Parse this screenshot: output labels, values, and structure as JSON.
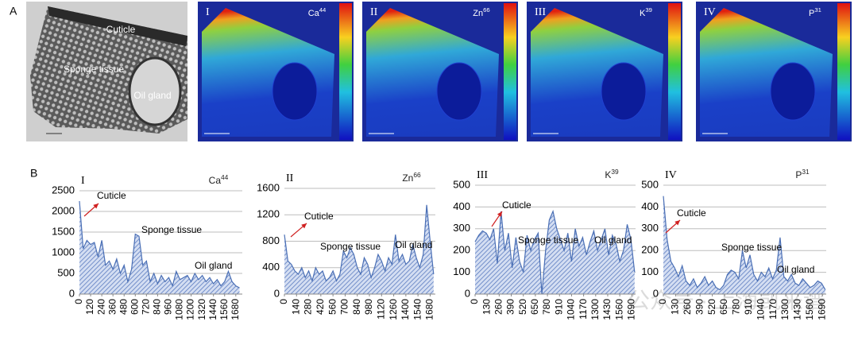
{
  "panel_labels": [
    "A",
    "B"
  ],
  "micrograph": {
    "labels": [
      "Cuticle",
      "Sponge tissue",
      "Oil gland"
    ]
  },
  "maps": [
    {
      "numeral": "I",
      "element": "Ca",
      "isotope": "44"
    },
    {
      "numeral": "II",
      "element": "Zn",
      "isotope": "66"
    },
    {
      "numeral": "III",
      "element": "K",
      "isotope": "39"
    },
    {
      "numeral": "IV",
      "element": "P",
      "isotope": "31"
    }
  ],
  "watermark": "公众号 · 上海凯来谱",
  "chart_data": [
    {
      "type": "area",
      "title": "I",
      "element": "Ca",
      "isotope": "44",
      "color": "#4a6fb5",
      "grid": true,
      "annotations": [
        "Cuticle",
        "Sponge tissue",
        "Oil gland"
      ],
      "x": [
        0,
        40,
        80,
        120,
        160,
        200,
        240,
        280,
        320,
        360,
        400,
        440,
        480,
        520,
        560,
        600,
        640,
        680,
        720,
        760,
        800,
        840,
        880,
        920,
        960,
        1000,
        1040,
        1080,
        1120,
        1160,
        1200,
        1240,
        1280,
        1320,
        1360,
        1400,
        1440,
        1480,
        1520,
        1560,
        1600,
        1640,
        1680,
        1720
      ],
      "values": [
        2250,
        1100,
        1300,
        1200,
        1250,
        900,
        1300,
        700,
        800,
        600,
        850,
        500,
        700,
        300,
        600,
        1450,
        1400,
        700,
        800,
        300,
        500,
        250,
        450,
        300,
        400,
        200,
        550,
        350,
        400,
        450,
        300,
        500,
        350,
        450,
        300,
        400,
        250,
        350,
        200,
        300,
        550,
        300,
        200,
        150
      ],
      "xlim": [
        0,
        1750
      ],
      "xticks": [
        0,
        120,
        240,
        360,
        480,
        600,
        720,
        840,
        960,
        1080,
        1200,
        1320,
        1440,
        1560,
        1680
      ],
      "ylim": [
        0,
        2500
      ],
      "yticks": [
        0,
        500,
        1000,
        1500,
        2000,
        2500
      ]
    },
    {
      "type": "area",
      "title": "II",
      "element": "Zn",
      "isotope": "66",
      "color": "#4a6fb5",
      "grid": true,
      "annotations": [
        "Cuticle",
        "Sponge tissue",
        "Oil gland"
      ],
      "x": [
        0,
        40,
        80,
        120,
        160,
        200,
        240,
        280,
        320,
        360,
        400,
        440,
        480,
        520,
        560,
        600,
        640,
        680,
        720,
        760,
        800,
        840,
        880,
        920,
        960,
        1000,
        1040,
        1080,
        1120,
        1160,
        1200,
        1240,
        1280,
        1320,
        1360,
        1400,
        1440,
        1480,
        1520,
        1560,
        1600,
        1640,
        1680,
        1720
      ],
      "values": [
        900,
        500,
        450,
        350,
        300,
        400,
        250,
        350,
        200,
        400,
        300,
        350,
        200,
        250,
        350,
        200,
        300,
        650,
        550,
        700,
        600,
        400,
        300,
        550,
        450,
        250,
        400,
        600,
        500,
        350,
        550,
        450,
        900,
        500,
        600,
        450,
        500,
        750,
        550,
        400,
        600,
        1350,
        800,
        300
      ],
      "xlim": [
        0,
        1740
      ],
      "xticks": [
        0,
        140,
        280,
        420,
        560,
        700,
        840,
        980,
        1120,
        1260,
        1400,
        1540,
        1680
      ],
      "ylim": [
        0,
        1600
      ],
      "yticks": [
        0,
        400,
        800,
        1200,
        1600
      ]
    },
    {
      "type": "area",
      "title": "III",
      "element": "K",
      "isotope": "39",
      "color": "#4a6fb5",
      "grid": true,
      "annotations": [
        "Cuticle",
        "Sponge tissue",
        "Oil gland"
      ],
      "x": [
        0,
        40,
        80,
        120,
        160,
        200,
        240,
        280,
        320,
        360,
        400,
        440,
        480,
        520,
        560,
        600,
        640,
        680,
        720,
        760,
        800,
        840,
        880,
        920,
        960,
        1000,
        1040,
        1080,
        1120,
        1160,
        1200,
        1240,
        1280,
        1320,
        1360,
        1400,
        1440,
        1480,
        1520,
        1560,
        1600,
        1640,
        1680,
        1720
      ],
      "values": [
        240,
        270,
        290,
        280,
        250,
        300,
        140,
        380,
        200,
        280,
        120,
        260,
        150,
        100,
        270,
        200,
        250,
        280,
        0,
        200,
        340,
        380,
        300,
        250,
        200,
        280,
        150,
        300,
        220,
        260,
        180,
        240,
        290,
        200,
        250,
        300,
        180,
        270,
        230,
        150,
        200,
        320,
        250,
        100
      ],
      "xlim": [
        0,
        1730
      ],
      "xticks": [
        0,
        130,
        260,
        390,
        520,
        650,
        780,
        910,
        1040,
        1170,
        1300,
        1430,
        1560,
        1690
      ],
      "ylim": [
        0,
        500
      ],
      "yticks": [
        0,
        100,
        200,
        300,
        400,
        500
      ]
    },
    {
      "type": "area",
      "title": "IV",
      "element": "P",
      "isotope": "31",
      "color": "#4a6fb5",
      "grid": true,
      "annotations": [
        "Cuticle",
        "Sponge tissue",
        "Oil gland"
      ],
      "x": [
        0,
        40,
        80,
        120,
        160,
        200,
        240,
        280,
        320,
        360,
        400,
        440,
        480,
        520,
        560,
        600,
        640,
        680,
        720,
        760,
        800,
        840,
        880,
        920,
        960,
        1000,
        1040,
        1080,
        1120,
        1160,
        1200,
        1240,
        1280,
        1320,
        1360,
        1400,
        1440,
        1480,
        1520,
        1560,
        1600,
        1640,
        1680,
        1720
      ],
      "values": [
        450,
        250,
        150,
        120,
        80,
        130,
        60,
        40,
        70,
        30,
        50,
        80,
        40,
        60,
        30,
        20,
        40,
        90,
        110,
        100,
        70,
        200,
        120,
        180,
        90,
        60,
        100,
        80,
        120,
        70,
        110,
        260,
        80,
        60,
        90,
        50,
        40,
        70,
        50,
        30,
        40,
        60,
        50,
        20
      ],
      "xlim": [
        0,
        1730
      ],
      "xticks": [
        0,
        130,
        260,
        390,
        520,
        650,
        780,
        910,
        1040,
        1170,
        1300,
        1430,
        1560,
        1690
      ],
      "ylim": [
        0,
        500
      ],
      "yticks": [
        0,
        100,
        200,
        300,
        400,
        500
      ]
    }
  ]
}
